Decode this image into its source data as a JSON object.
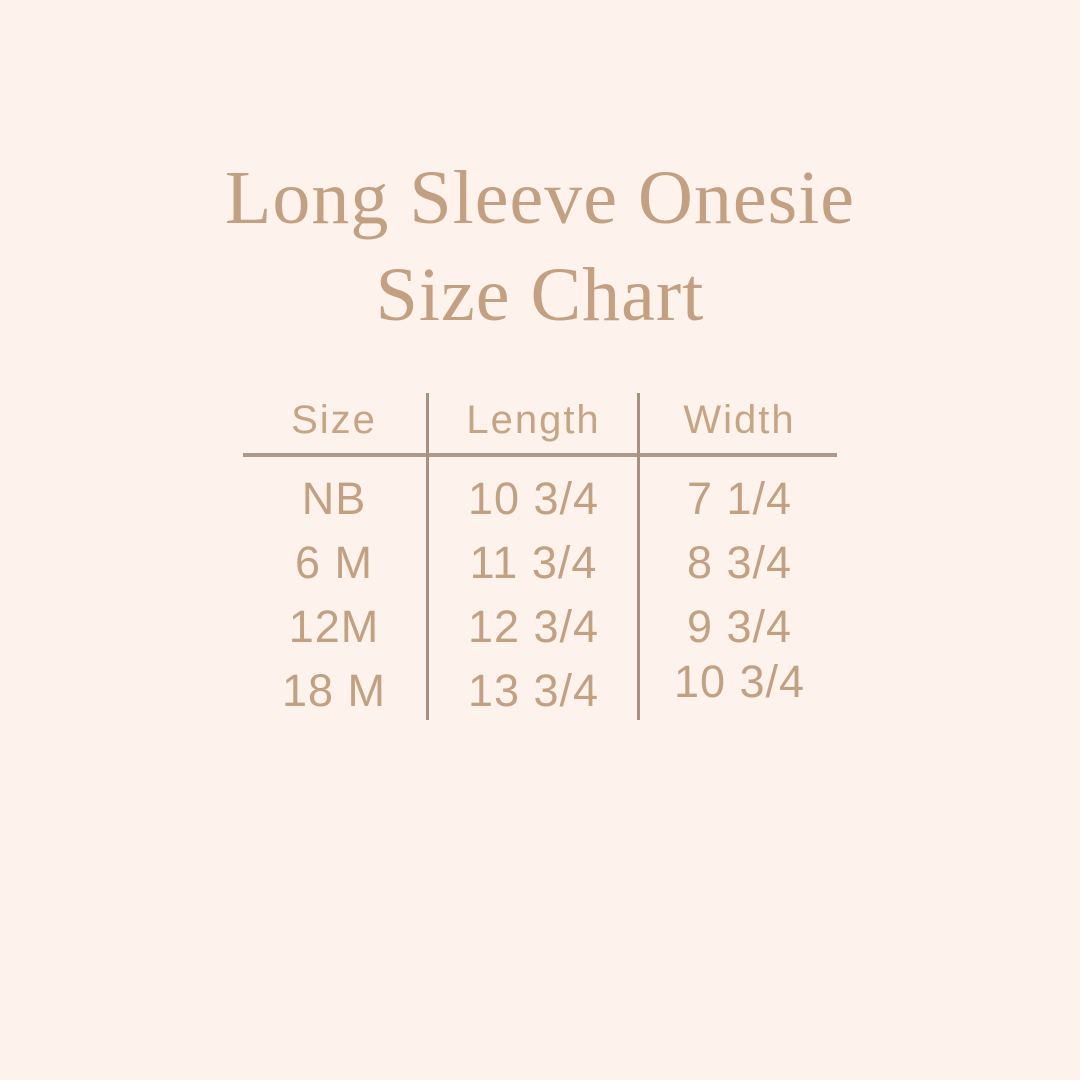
{
  "title": {
    "line1": "Long Sleeve Onesie",
    "line2": "Size Chart"
  },
  "table": {
    "headers": [
      "Size",
      "Length",
      "Width"
    ],
    "rows": [
      [
        "NB",
        "10 3/4",
        "7 1/4"
      ],
      [
        "6 M",
        "11 3/4",
        "8 3/4"
      ],
      [
        "12M",
        "12 3/4",
        "9 3/4"
      ],
      [
        "18 M",
        "13 3/4",
        "10 3/4"
      ]
    ]
  },
  "chart_data": {
    "type": "table",
    "title": "Long Sleeve Onesie Size Chart",
    "columns": [
      "Size",
      "Length",
      "Width"
    ],
    "rows": [
      {
        "size": "NB",
        "length_display": "10 3/4",
        "length": 10.75,
        "width_display": "7 1/4",
        "width": 7.25
      },
      {
        "size": "6 M",
        "length_display": "11 3/4",
        "length": 11.75,
        "width_display": "8 3/4",
        "width": 8.75
      },
      {
        "size": "12M",
        "length_display": "12 3/4",
        "length": 12.75,
        "width_display": "9 3/4",
        "width": 9.75
      },
      {
        "size": "18 M",
        "length_display": "13 3/4",
        "length": 13.75,
        "width_display": "10 3/4",
        "width": 10.75
      }
    ],
    "layout": {
      "grid": "column dividers between all three columns, single horizontal rule under header",
      "legend": "none"
    }
  },
  "colors": {
    "background": "#fdf3ec",
    "title_text": "#c3a081",
    "header_text": "#c6a585",
    "body_text": "#c2a183",
    "divider": "#a8907e"
  }
}
